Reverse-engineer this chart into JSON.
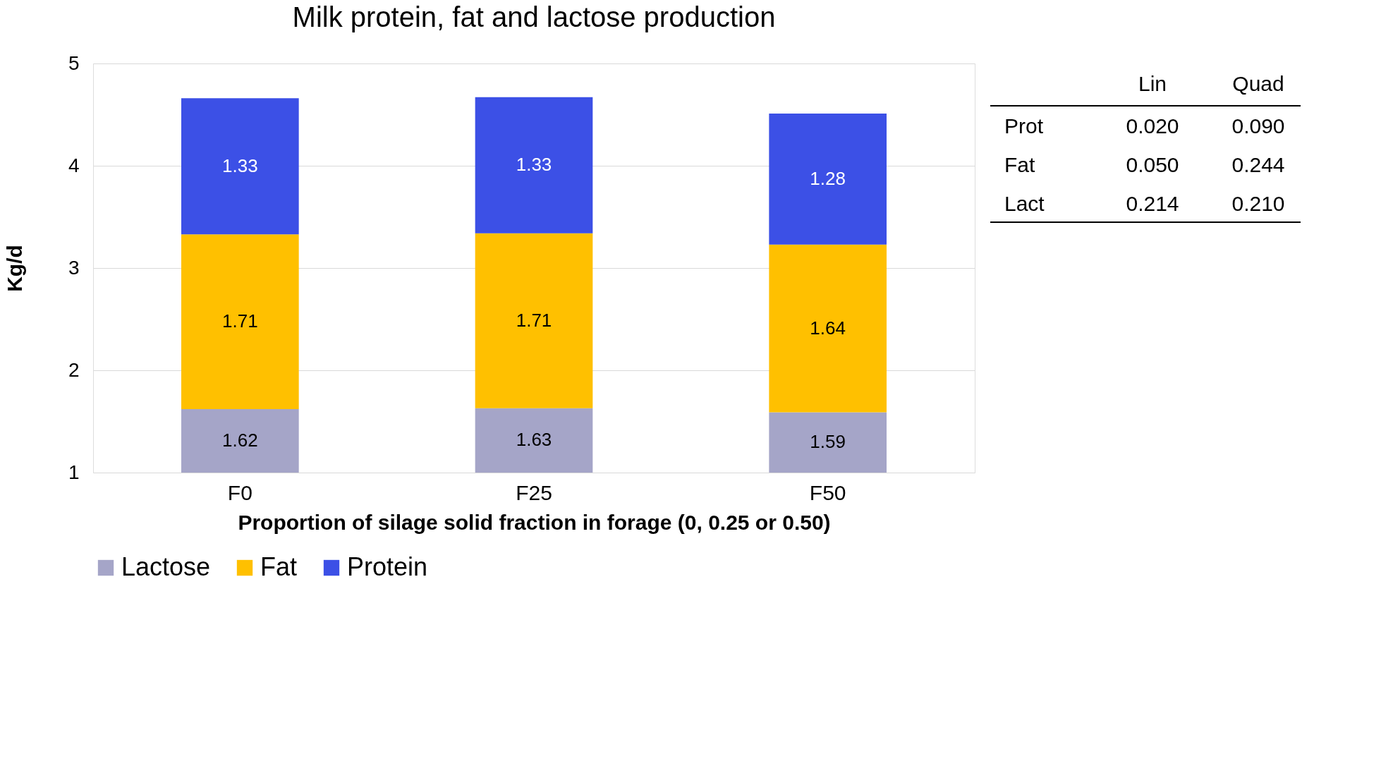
{
  "chart_data": {
    "type": "bar",
    "stacked": true,
    "title": "Milk protein, fat and lactose production",
    "xlabel": "Proportion of silage solid fraction in forage (0, 0.25 or 0.50)",
    "ylabel": "Kg/d",
    "categories": [
      "F0",
      "F25",
      "F50"
    ],
    "series": [
      {
        "name": "Lactose",
        "color": "#a5a5c8",
        "values": [
          1.62,
          1.63,
          1.59
        ]
      },
      {
        "name": "Fat",
        "color": "#ffc000",
        "values": [
          1.71,
          1.71,
          1.64
        ]
      },
      {
        "name": "Protein",
        "color": "#3c50e6",
        "values": [
          1.33,
          1.33,
          1.28
        ]
      }
    ],
    "ylim": [
      1,
      5
    ],
    "yticks": [
      1,
      2,
      3,
      4,
      5
    ],
    "grid": "y",
    "legend": "bottom",
    "data_labels": true,
    "annotations": [
      "Lin",
      "Quad",
      "Prot",
      "0.020",
      "0.090",
      "Fat",
      "0.050",
      "0.244",
      "Lact",
      "0.214",
      "0.210"
    ]
  }
}
